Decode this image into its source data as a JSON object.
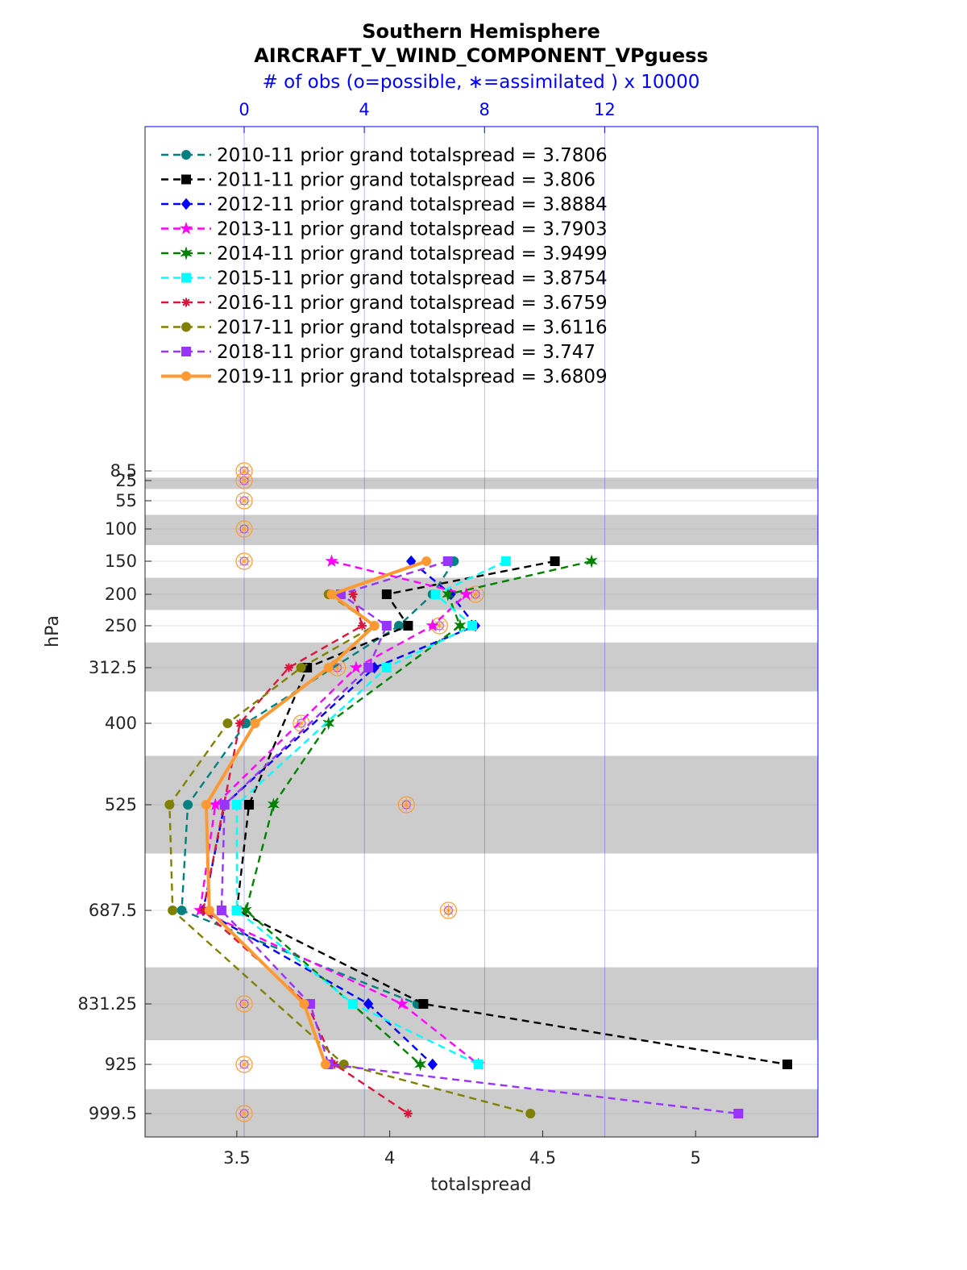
{
  "chart_data": {
    "type": "line",
    "title": "Southern Hemisphere",
    "subtitle": "AIRCRAFT_V_WIND_COMPONENT_VPguess",
    "xlabel": "totalspread",
    "ylabel": "hPa",
    "top_axis_label": "# of obs (o=possible, ∗=assimilated ) x 10000",
    "xlim": [
      3.2,
      5.4
    ],
    "xticks": [
      "3.5",
      "4",
      "4.5",
      "5"
    ],
    "xtick_values": [
      3.5,
      4,
      4.5,
      5
    ],
    "top_xlim": [
      -3.3,
      19.1
    ],
    "top_xticks": [
      "0",
      "4",
      "8",
      "12"
    ],
    "top_xtick_values": [
      0,
      4,
      8,
      12
    ],
    "y_levels": [
      "8.5",
      "25",
      "55",
      "100",
      "150",
      "200",
      "250",
      "312.5",
      "400",
      "525",
      "687.5",
      "831.25",
      "925",
      "999.5"
    ],
    "y_level_values": [
      8.5,
      25,
      55,
      100,
      150,
      200,
      250,
      312.5,
      400,
      525,
      687.5,
      831.25,
      925,
      999.5
    ],
    "y_reversed": true,
    "shaded_bands_hpa": [
      [
        20,
        37.5
      ],
      [
        77.5,
        125
      ],
      [
        175,
        225
      ],
      [
        275,
        350
      ],
      [
        450,
        600
      ],
      [
        775,
        887.5
      ],
      [
        962.5,
        1037.5
      ]
    ],
    "grid": true,
    "legend_position": "top-left",
    "series": [
      {
        "name": "2010-11 prior grand totalspread = 3.7806",
        "color": "#008080",
        "marker": "circle",
        "style": "dashed",
        "levels": [
          150,
          200,
          250,
          400,
          525,
          687.5,
          831.25
        ],
        "values": [
          4.21,
          4.14,
          4.03,
          3.53,
          3.34,
          3.32,
          4.09
        ]
      },
      {
        "name": "2011-11 prior grand totalspread = 3.806",
        "color": "#000000",
        "marker": "square",
        "style": "dashed",
        "levels": [
          150,
          200,
          250,
          312.5,
          525,
          687.5,
          831.25,
          925
        ],
        "values": [
          4.54,
          3.99,
          4.06,
          3.73,
          3.54,
          3.5,
          4.11,
          5.3
        ]
      },
      {
        "name": "2012-11 prior grand totalspread = 3.8884",
        "color": "#0000ff",
        "marker": "diamond",
        "style": "dashed",
        "levels": [
          150,
          200,
          250,
          312.5,
          525,
          687.5,
          831.25,
          925
        ],
        "values": [
          4.07,
          4.2,
          4.28,
          3.95,
          3.46,
          3.39,
          3.93,
          4.14
        ]
      },
      {
        "name": "2013-11 prior grand totalspread = 3.7903",
        "color": "#ff00ff",
        "marker": "star",
        "style": "dashed",
        "levels": [
          150,
          200,
          250,
          312.5,
          525,
          687.5,
          831.25,
          925
        ],
        "values": [
          3.81,
          4.25,
          4.14,
          3.89,
          3.43,
          3.38,
          4.04,
          4.29
        ]
      },
      {
        "name": "2014-11 prior grand totalspread = 3.9499",
        "color": "#008000",
        "marker": "hexagram",
        "style": "dashed",
        "levels": [
          150,
          200,
          250,
          400,
          525,
          687.5,
          925
        ],
        "values": [
          4.66,
          4.19,
          4.23,
          3.8,
          3.62,
          3.53,
          4.1
        ]
      },
      {
        "name": "2015-11 prior grand totalspread = 3.8754",
        "color": "#00ffff",
        "marker": "square",
        "style": "dashed",
        "levels": [
          150,
          200,
          250,
          312.5,
          525,
          687.5,
          831.25,
          925
        ],
        "values": [
          4.38,
          4.15,
          4.27,
          3.99,
          3.5,
          3.5,
          3.88,
          4.29
        ]
      },
      {
        "name": "2016-11 prior grand totalspread = 3.6759",
        "color": "#dc143c",
        "marker": "asterisk",
        "style": "dashed",
        "levels": [
          200,
          250,
          312.5,
          400,
          687.5,
          831.25,
          925,
          999.5
        ],
        "values": [
          3.88,
          3.91,
          3.67,
          3.51,
          3.39,
          3.73,
          3.82,
          4.06
        ]
      },
      {
        "name": "2017-11 prior grand totalspread = 3.6116",
        "color": "#808000",
        "marker": "circle",
        "style": "dashed",
        "levels": [
          200,
          250,
          312.5,
          400,
          525,
          687.5,
          925,
          999.5
        ],
        "values": [
          3.8,
          3.95,
          3.71,
          3.47,
          3.28,
          3.29,
          3.85,
          4.46
        ]
      },
      {
        "name": "2018-11 prior grand totalspread = 3.747",
        "color": "#9933ff",
        "marker": "square",
        "style": "dashed",
        "levels": [
          150,
          200,
          250,
          312.5,
          525,
          687.5,
          831.25,
          925,
          999.5
        ],
        "values": [
          4.19,
          3.84,
          3.99,
          3.93,
          3.46,
          3.45,
          3.74,
          3.8,
          5.14
        ]
      },
      {
        "name": "2019-11 prior grand totalspread = 3.6809",
        "color": "#ff9933",
        "marker": "circle",
        "style": "solid",
        "levels": [
          150,
          200,
          250,
          312.5,
          400,
          525,
          687.5,
          831.25,
          925
        ],
        "values": [
          4.12,
          3.81,
          3.95,
          3.8,
          3.56,
          3.4,
          3.41,
          3.72,
          3.79
        ]
      }
    ],
    "obs_counts_x10000": {
      "levels": [
        8.5,
        25,
        55,
        100,
        150,
        200,
        250,
        312.5,
        400,
        525,
        687.5,
        831.25,
        925,
        999.5
      ],
      "possible": [
        0,
        0,
        0,
        0,
        0,
        7.7,
        6.5,
        3.1,
        1.9,
        5.4,
        6.8,
        0,
        0,
        0
      ],
      "assimilated": [
        0,
        0,
        0,
        0,
        0,
        7.7,
        6.5,
        3.1,
        1.9,
        5.4,
        6.8,
        0,
        0,
        0
      ]
    }
  }
}
